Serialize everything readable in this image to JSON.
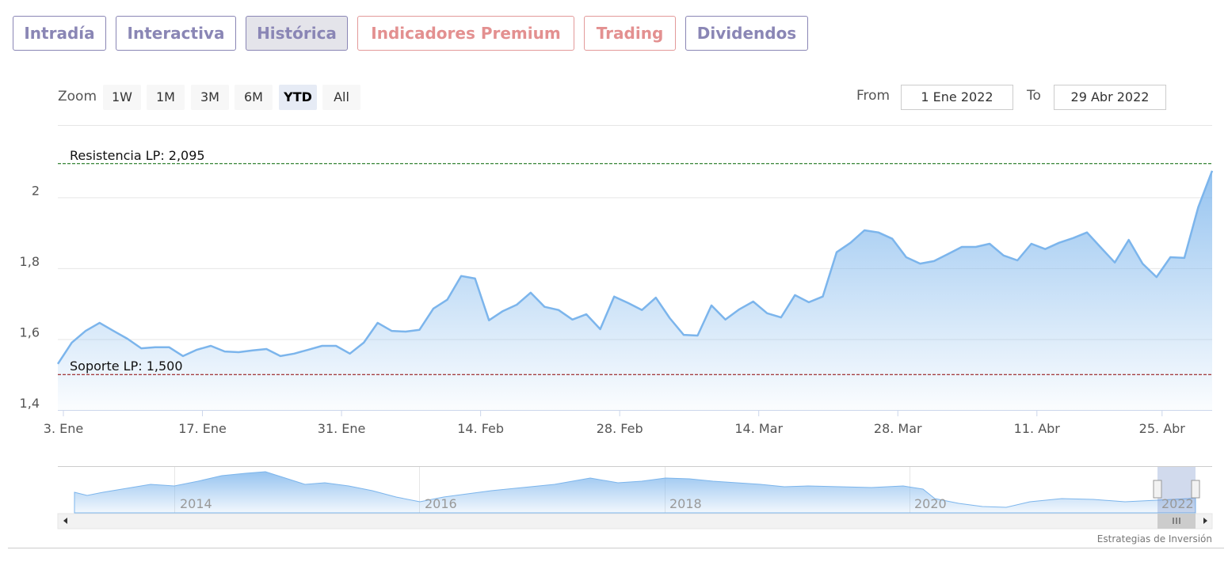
{
  "tabs": [
    "Intradía",
    "Interactiva",
    "Histórica",
    "Indicadores Premium",
    "Trading",
    "Dividendos"
  ],
  "range_selector": {
    "zoom_label": "Zoom",
    "buttons": [
      "1W",
      "1M",
      "3M",
      "6M",
      "YTD",
      "All"
    ],
    "from_label": "From",
    "from": "1 Ene 2022",
    "to_label": "To",
    "to": "29 Abr 2022"
  },
  "chart_data": {
    "type": "area",
    "categories": [
      "3. Ene",
      null,
      null,
      null,
      null,
      null,
      null,
      null,
      null,
      null,
      "17. Ene",
      null,
      null,
      null,
      null,
      null,
      null,
      null,
      null,
      null,
      "31. Ene",
      null,
      null,
      null,
      null,
      null,
      null,
      null,
      null,
      null,
      "14. Feb",
      null,
      null,
      null,
      null,
      null,
      null,
      null,
      null,
      null,
      "28. Feb",
      null,
      null,
      null,
      null,
      null,
      null,
      null,
      null,
      null,
      "14. Mar",
      null,
      null,
      null,
      null,
      null,
      null,
      null,
      null,
      null,
      "28. Mar",
      null,
      null,
      null,
      null,
      null,
      null,
      null,
      null,
      null,
      "11. Abr",
      null,
      null,
      null,
      null,
      null,
      null,
      null,
      null,
      "25. Abr",
      null,
      null,
      null,
      null
    ],
    "series": [
      {
        "color": "#7cb5ec",
        "values": [
          1.53,
          1.59,
          1.623,
          1.646,
          1.623,
          1.601,
          1.574,
          1.577,
          1.577,
          1.552,
          1.57,
          1.581,
          1.565,
          1.563,
          1.568,
          1.572,
          1.552,
          1.559,
          1.57,
          1.581,
          1.581,
          1.559,
          1.59,
          1.646,
          1.623,
          1.621,
          1.626,
          1.686,
          1.711,
          1.778,
          1.771,
          1.653,
          1.679,
          1.697,
          1.731,
          1.691,
          1.682,
          1.655,
          1.67,
          1.628,
          1.72,
          1.702,
          1.682,
          1.717,
          1.659,
          1.612,
          1.61,
          1.695,
          1.655,
          1.684,
          1.706,
          1.673,
          1.661,
          1.724,
          1.704,
          1.72,
          1.845,
          1.872,
          1.907,
          1.901,
          1.883,
          1.831,
          1.813,
          1.82,
          1.84,
          1.86,
          1.86,
          1.869,
          1.836,
          1.822,
          1.869,
          1.854,
          1.872,
          1.885,
          1.901,
          1.858,
          1.816,
          1.88,
          1.813,
          1.775,
          1.831,
          1.829,
          1.972,
          2.075
        ]
      }
    ],
    "ylim": [
      1.4,
      2.204
    ],
    "yticks": [
      {
        "value": 1.4,
        "label": "1,4"
      },
      {
        "value": 1.6,
        "label": "1,6"
      },
      {
        "value": 1.8,
        "label": "1,8"
      },
      2
    ],
    "grid": true,
    "plot_lines": [
      {
        "label": "Resistencia LP: 2,095",
        "value": 2.095,
        "color": "#006400"
      },
      {
        "label": "Soporte LP: 1,500",
        "value": 1.5,
        "color": "#8b0000"
      }
    ],
    "navigator_labels": [
      "2014",
      "2016",
      "2018",
      "2020",
      "2022"
    ]
  },
  "credits": "Estrategias de Inversión"
}
